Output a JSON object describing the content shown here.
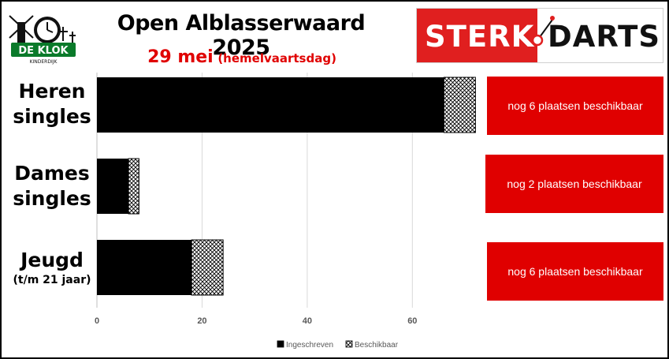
{
  "header": {
    "title": "Open Alblasserwaard 2025",
    "subtitle_main": "29 mei",
    "subtitle_note": "(hemelvaartsdag)"
  },
  "logo_left": {
    "name": "DE KLOK",
    "place": "KINDERDIJK"
  },
  "sponsor": {
    "part1": "STERK",
    "part2": "DARTS",
    "accent": "#e01f1f"
  },
  "categories_display": [
    {
      "line1": "Heren",
      "line2": "singles",
      "note": ""
    },
    {
      "line1": "Dames",
      "line2": "singles",
      "note": ""
    },
    {
      "line1": "Jeugd",
      "line2": "",
      "note": "(t/m 21 jaar)"
    }
  ],
  "availability": [
    "nog 6 plaatsen beschikbaar",
    "nog 2 plaatsen beschikbaar",
    "nog 6 plaatsen beschikbaar"
  ],
  "colors": {
    "registered": "#000000",
    "accent_red": "#e00000"
  },
  "chart_data": {
    "type": "bar",
    "orientation": "horizontal",
    "stacked": true,
    "categories": [
      "Heren singles",
      "Dames singles",
      "Jeugd (t/m 21 jaar)"
    ],
    "series": [
      {
        "name": "Ingeschreven",
        "values": [
          66,
          6,
          18
        ],
        "pattern": "solid-black"
      },
      {
        "name": "Beschikbaar",
        "values": [
          6,
          2,
          6
        ],
        "pattern": "crosshatch"
      }
    ],
    "xticks": [
      0,
      20,
      40,
      60
    ],
    "xlim": [
      0,
      75
    ],
    "grid": true,
    "legend": "bottom"
  }
}
